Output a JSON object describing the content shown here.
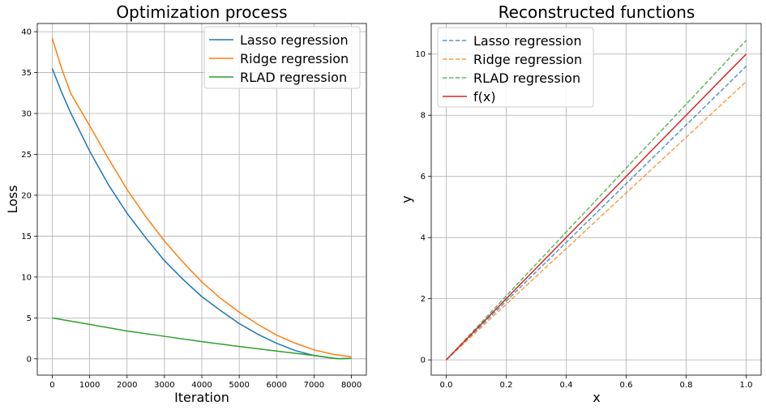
{
  "chart_data": [
    {
      "type": "line",
      "title": "Optimization process",
      "xlabel": "Iteration",
      "ylabel": "Loss",
      "xlim": [
        -400,
        8400
      ],
      "ylim": [
        -2,
        41
      ],
      "xticks": [
        0,
        1000,
        2000,
        3000,
        4000,
        5000,
        6000,
        7000,
        8000
      ],
      "yticks": [
        0,
        5,
        10,
        15,
        20,
        25,
        30,
        35,
        40
      ],
      "grid": true,
      "legend_position": "top-right",
      "series": [
        {
          "name": "Lasso regression",
          "color": "#1f77b4",
          "style": "solid",
          "x": [
            0,
            250,
            500,
            1000,
            1500,
            2000,
            2500,
            3000,
            3500,
            4000,
            4500,
            5000,
            5500,
            6000,
            6500,
            7000,
            7500,
            7700,
            8000
          ],
          "values": [
            35.5,
            32.6,
            30.0,
            25.4,
            21.3,
            17.8,
            14.8,
            12.0,
            9.7,
            7.6,
            5.9,
            4.3,
            3.0,
            1.9,
            1.0,
            0.4,
            0.08,
            0.0,
            0.05
          ]
        },
        {
          "name": "Ridge regression",
          "color": "#ff7f0e",
          "style": "solid",
          "x": [
            0,
            250,
            500,
            1000,
            1500,
            2000,
            2500,
            3000,
            3500,
            4000,
            4500,
            5000,
            5500,
            6000,
            6500,
            7000,
            7500,
            8000
          ],
          "values": [
            39.2,
            35.5,
            32.4,
            28.5,
            24.5,
            20.7,
            17.4,
            14.4,
            11.8,
            9.4,
            7.4,
            5.7,
            4.2,
            2.9,
            1.9,
            1.1,
            0.55,
            0.25
          ]
        },
        {
          "name": "RLAD regression",
          "color": "#2ca02c",
          "style": "solid",
          "x": [
            0,
            1000,
            2000,
            3000,
            4000,
            5000,
            6000,
            7000,
            7600,
            8000
          ],
          "values": [
            5.0,
            4.2,
            3.4,
            2.75,
            2.1,
            1.5,
            0.95,
            0.4,
            0.02,
            0.05
          ]
        }
      ]
    },
    {
      "type": "line",
      "title": "Reconstructed functions",
      "xlabel": "x",
      "ylabel": "y",
      "xlim": [
        -0.05,
        1.05
      ],
      "ylim": [
        -0.5,
        11.0
      ],
      "xticks": [
        0.0,
        0.2,
        0.4,
        0.6,
        0.8,
        1.0
      ],
      "yticks": [
        0,
        2,
        4,
        6,
        8,
        10
      ],
      "grid": true,
      "legend_position": "top-left",
      "series": [
        {
          "name": "Lasso regression",
          "color": "#1f77b4",
          "style": "dashed",
          "x": [
            0.0,
            1.0
          ],
          "values": [
            0.0,
            9.6
          ]
        },
        {
          "name": "Ridge regression",
          "color": "#ff7f0e",
          "style": "dashed",
          "x": [
            0.0,
            1.0
          ],
          "values": [
            0.0,
            9.1
          ]
        },
        {
          "name": "RLAD regression",
          "color": "#2ca02c",
          "style": "dashed",
          "x": [
            0.0,
            1.0
          ],
          "values": [
            0.0,
            10.45
          ]
        },
        {
          "name": "f(x)",
          "color": "#d62728",
          "style": "solid",
          "x": [
            0.0,
            1.0
          ],
          "values": [
            0.0,
            10.0
          ]
        }
      ]
    }
  ]
}
